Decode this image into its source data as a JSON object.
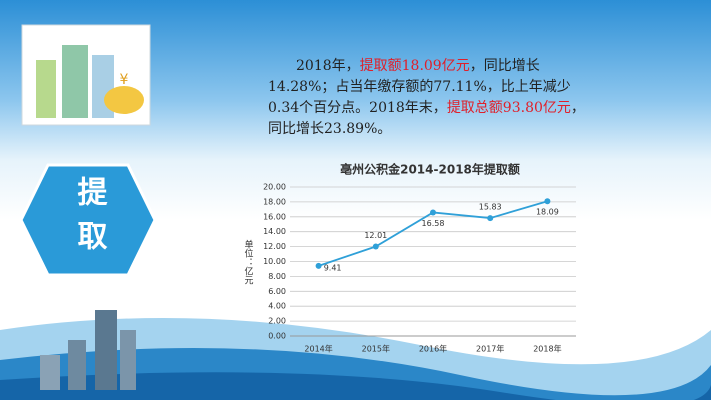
{
  "slide": {
    "badge": "提取",
    "paragraph": [
      {
        "text": "2018年，",
        "highlight": false
      },
      {
        "text": "提取额18.09亿元",
        "highlight": true
      },
      {
        "text": "，同比增长14.28%；占当年缴存额的77.11%，比上年减少0.34个百分点。2018年末，",
        "highlight": false
      },
      {
        "text": "提取总额93.80亿元",
        "highlight": true
      },
      {
        "text": "，同比增长23.89%。",
        "highlight": false
      }
    ]
  },
  "chart_data": {
    "type": "line",
    "title": "亳州公积金2014-2018年提取额",
    "y_label": "单位：亿元",
    "categories": [
      "2014年",
      "2015年",
      "2016年",
      "2017年",
      "2018年"
    ],
    "values": [
      9.41,
      12.01,
      16.58,
      15.83,
      18.09
    ],
    "color": "#2fa0d8",
    "ylim": [
      0,
      20
    ],
    "yticks": [
      {
        "value": 0,
        "label": "0.00"
      },
      {
        "value": 2,
        "label": "2.00"
      },
      {
        "value": 4,
        "label": "4.00"
      },
      {
        "value": 6,
        "label": "6.00"
      },
      {
        "value": 8,
        "label": "8.00"
      },
      {
        "value": 10,
        "label": "10.00"
      },
      {
        "value": 12,
        "label": "12.00"
      },
      {
        "value": 14,
        "label": "14.00"
      },
      {
        "value": 16,
        "label": "16.00"
      },
      {
        "value": 18,
        "label": "18.00"
      },
      {
        "value": 20,
        "label": "20.00"
      }
    ],
    "grid": true
  }
}
